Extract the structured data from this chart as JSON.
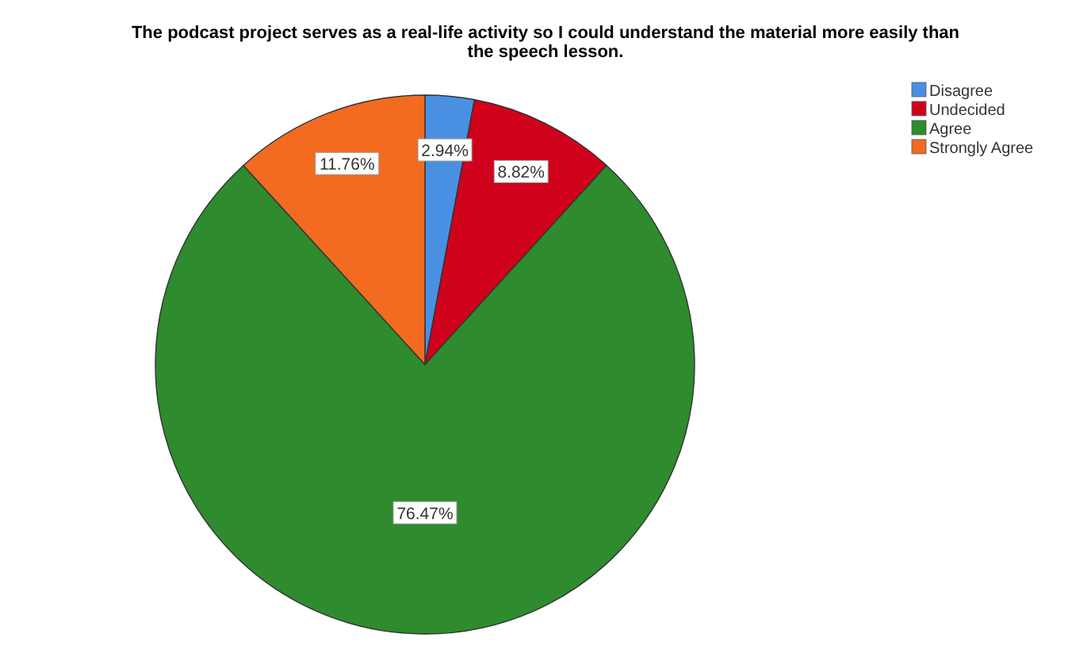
{
  "chart_data": {
    "type": "pie",
    "title": "The podcast project serves as a real-life activity so I could understand the material more easily than the speech lesson.",
    "categories": [
      "Disagree",
      "Undecided",
      "Agree",
      "Strongly Agree"
    ],
    "values": [
      2.94,
      8.82,
      76.47,
      11.76
    ],
    "colors": [
      "#4a90e2",
      "#d0021b",
      "#2e8b2e",
      "#f26b21"
    ],
    "value_labels": [
      "2.94%",
      "8.82%",
      "76.47%",
      "11.76%"
    ],
    "legend": "top right"
  }
}
